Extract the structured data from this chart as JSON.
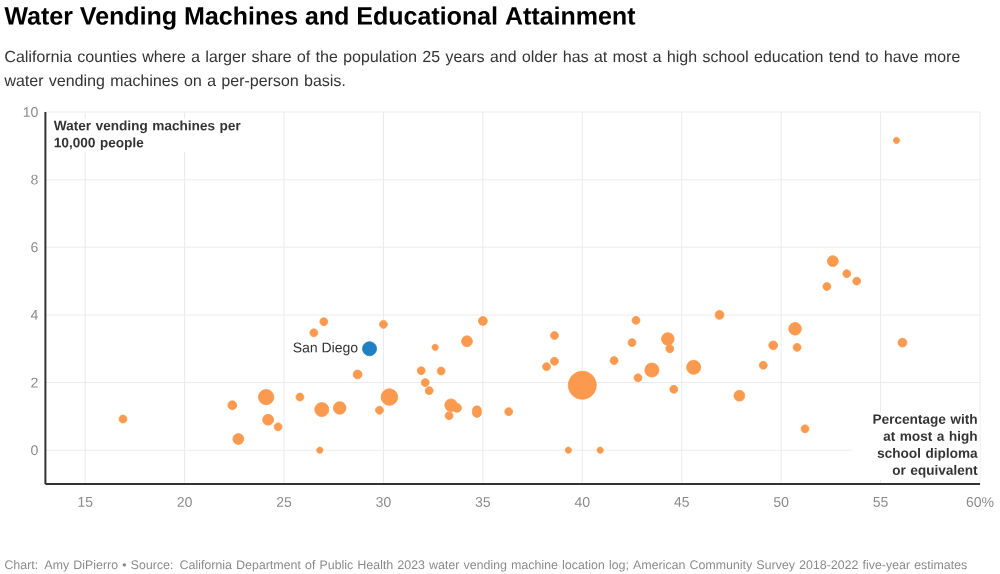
{
  "chart_data": {
    "type": "bubble",
    "title": "Water Vending Machines and Educational Attainment",
    "subtitle": "California counties where a larger share of the population 25 years and older has at most a high school education tend to have more water vending machines on a per-person basis.",
    "xlabel": "Percentage with at most a high school diploma or equivalent",
    "ylabel": "Water vending machines per 10,000 people",
    "annotations": [
      "Chart: Amy DiPierro • Source: California Department of Public Health 2023 water vending machine location log; American Community Survey 2018-2022 five-year estimates"
    ],
    "xlim": [
      13,
      60
    ],
    "ylim": [
      -1,
      10
    ],
    "xticks": [
      15,
      20,
      25,
      30,
      35,
      40,
      45,
      50,
      55,
      {
        "value": 60,
        "label": "60%"
      }
    ],
    "yticks": [
      0,
      2,
      4,
      6,
      8,
      10
    ],
    "grid": true,
    "marker": "circle",
    "series": [
      {
        "color": "#fb9a4e",
        "x": [
          16.9,
          22.4,
          22.7,
          24.1,
          24.2,
          24.7,
          25.8,
          26.5,
          27.0,
          26.8,
          26.9,
          27.8,
          28.7,
          29.8,
          30.0,
          30.3,
          31.9,
          32.1,
          32.3,
          32.6,
          32.9,
          33.3,
          33.4,
          33.7,
          34.2,
          34.7,
          34.7,
          35.0,
          36.3,
          38.6,
          38.2,
          38.6,
          39.3,
          40.0,
          40.9,
          41.6,
          42.7,
          42.5,
          42.8,
          43.5,
          44.3,
          44.4,
          44.6,
          45.6,
          46.9,
          47.9,
          49.1,
          49.6,
          50.7,
          50.8,
          51.2,
          52.3,
          52.6,
          53.3,
          53.8,
          55.8,
          56.1
        ],
        "values": [
          0.92,
          1.33,
          0.33,
          1.57,
          0.9,
          0.69,
          1.57,
          3.47,
          3.8,
          0.0,
          1.2,
          1.25,
          2.24,
          1.18,
          3.72,
          1.57,
          2.35,
          2.0,
          1.76,
          3.04,
          2.34,
          1.02,
          1.33,
          1.25,
          3.22,
          1.18,
          1.1,
          3.82,
          1.14,
          3.39,
          2.47,
          2.63,
          0.0,
          1.92,
          0.0,
          2.65,
          3.84,
          3.18,
          2.14,
          2.37,
          3.29,
          3.0,
          1.8,
          2.45,
          4.0,
          1.61,
          2.51,
          3.1,
          3.59,
          3.04,
          0.63,
          4.84,
          5.59,
          5.22,
          5.0,
          9.16,
          3.18
        ],
        "sizes": [
          0.08,
          0.1,
          0.15,
          0.3,
          0.15,
          0.08,
          0.08,
          0.08,
          0.08,
          0.05,
          0.25,
          0.2,
          0.1,
          0.08,
          0.08,
          0.35,
          0.08,
          0.08,
          0.08,
          0.05,
          0.08,
          0.08,
          0.2,
          0.1,
          0.15,
          0.1,
          0.1,
          0.1,
          0.08,
          0.08,
          0.08,
          0.08,
          0.05,
          1,
          0.05,
          0.08,
          0.08,
          0.08,
          0.08,
          0.25,
          0.2,
          0.08,
          0.08,
          0.25,
          0.1,
          0.15,
          0.08,
          0.1,
          0.2,
          0.08,
          0.08,
          0.08,
          0.15,
          0.08,
          0.08,
          0.05,
          0.1
        ]
      },
      {
        "name": "San Diego",
        "color": "#1f81c3",
        "x": [
          29.3
        ],
        "values": [
          3.0
        ],
        "sizes": [
          0.25
        ]
      }
    ]
  }
}
